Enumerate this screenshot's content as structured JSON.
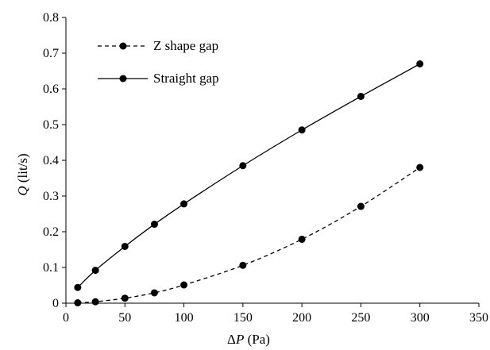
{
  "chart_data": {
    "type": "scatter",
    "xlabel": {
      "prefix": "Δ",
      "variable": "P",
      "unit": " (Pa)"
    },
    "ylabel": {
      "variable": "Q",
      "unit": " (lit/s)"
    },
    "xlim": [
      0,
      350
    ],
    "ylim": [
      0,
      0.8
    ],
    "xticks": [
      "0",
      "50",
      "100",
      "150",
      "200",
      "250",
      "300",
      "350"
    ],
    "yticks": [
      "0",
      "0.1",
      "0.2",
      "0.3",
      "0.4",
      "0.5",
      "0.6",
      "0.7",
      "0.8"
    ],
    "grid": false,
    "legend_position": "top-left",
    "series": [
      {
        "name": "Z shape gap",
        "line_style": "dashed",
        "color": "#000000",
        "x": [
          10,
          25,
          50,
          75,
          100,
          150,
          200,
          250,
          300
        ],
        "y": [
          0.001,
          0.004,
          0.014,
          0.029,
          0.051,
          0.106,
          0.179,
          0.271,
          0.38
        ]
      },
      {
        "name": "Straight gap",
        "line_style": "solid",
        "color": "#000000",
        "x": [
          10,
          25,
          50,
          75,
          100,
          150,
          200,
          250,
          300
        ],
        "y": [
          0.044,
          0.092,
          0.159,
          0.221,
          0.278,
          0.385,
          0.485,
          0.579,
          0.67
        ]
      }
    ]
  }
}
